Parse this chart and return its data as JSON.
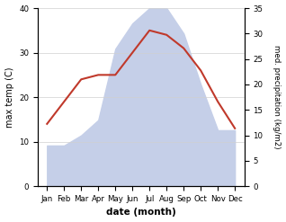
{
  "months": [
    "Jan",
    "Feb",
    "Mar",
    "Apr",
    "May",
    "Jun",
    "Jul",
    "Aug",
    "Sep",
    "Oct",
    "Nov",
    "Dec"
  ],
  "max_temp": [
    14,
    19,
    24,
    25,
    25,
    30,
    35,
    34,
    31,
    26,
    19,
    13
  ],
  "precipitation": [
    8,
    8,
    10,
    13,
    27,
    32,
    35,
    35,
    30,
    20,
    11,
    11
  ],
  "temp_color": "#c0392b",
  "precip_color_fill": "#c5cfe8",
  "title": "",
  "xlabel": "date (month)",
  "ylabel_left": "max temp (C)",
  "ylabel_right": "med. precipitation (kg/m2)",
  "ylim_left": [
    0,
    40
  ],
  "ylim_right": [
    0,
    35
  ],
  "yticks_left": [
    0,
    10,
    20,
    30,
    40
  ],
  "yticks_right": [
    0,
    5,
    10,
    15,
    20,
    25,
    30,
    35
  ],
  "background_color": "#ffffff",
  "grid_color": "#d0d0d0"
}
